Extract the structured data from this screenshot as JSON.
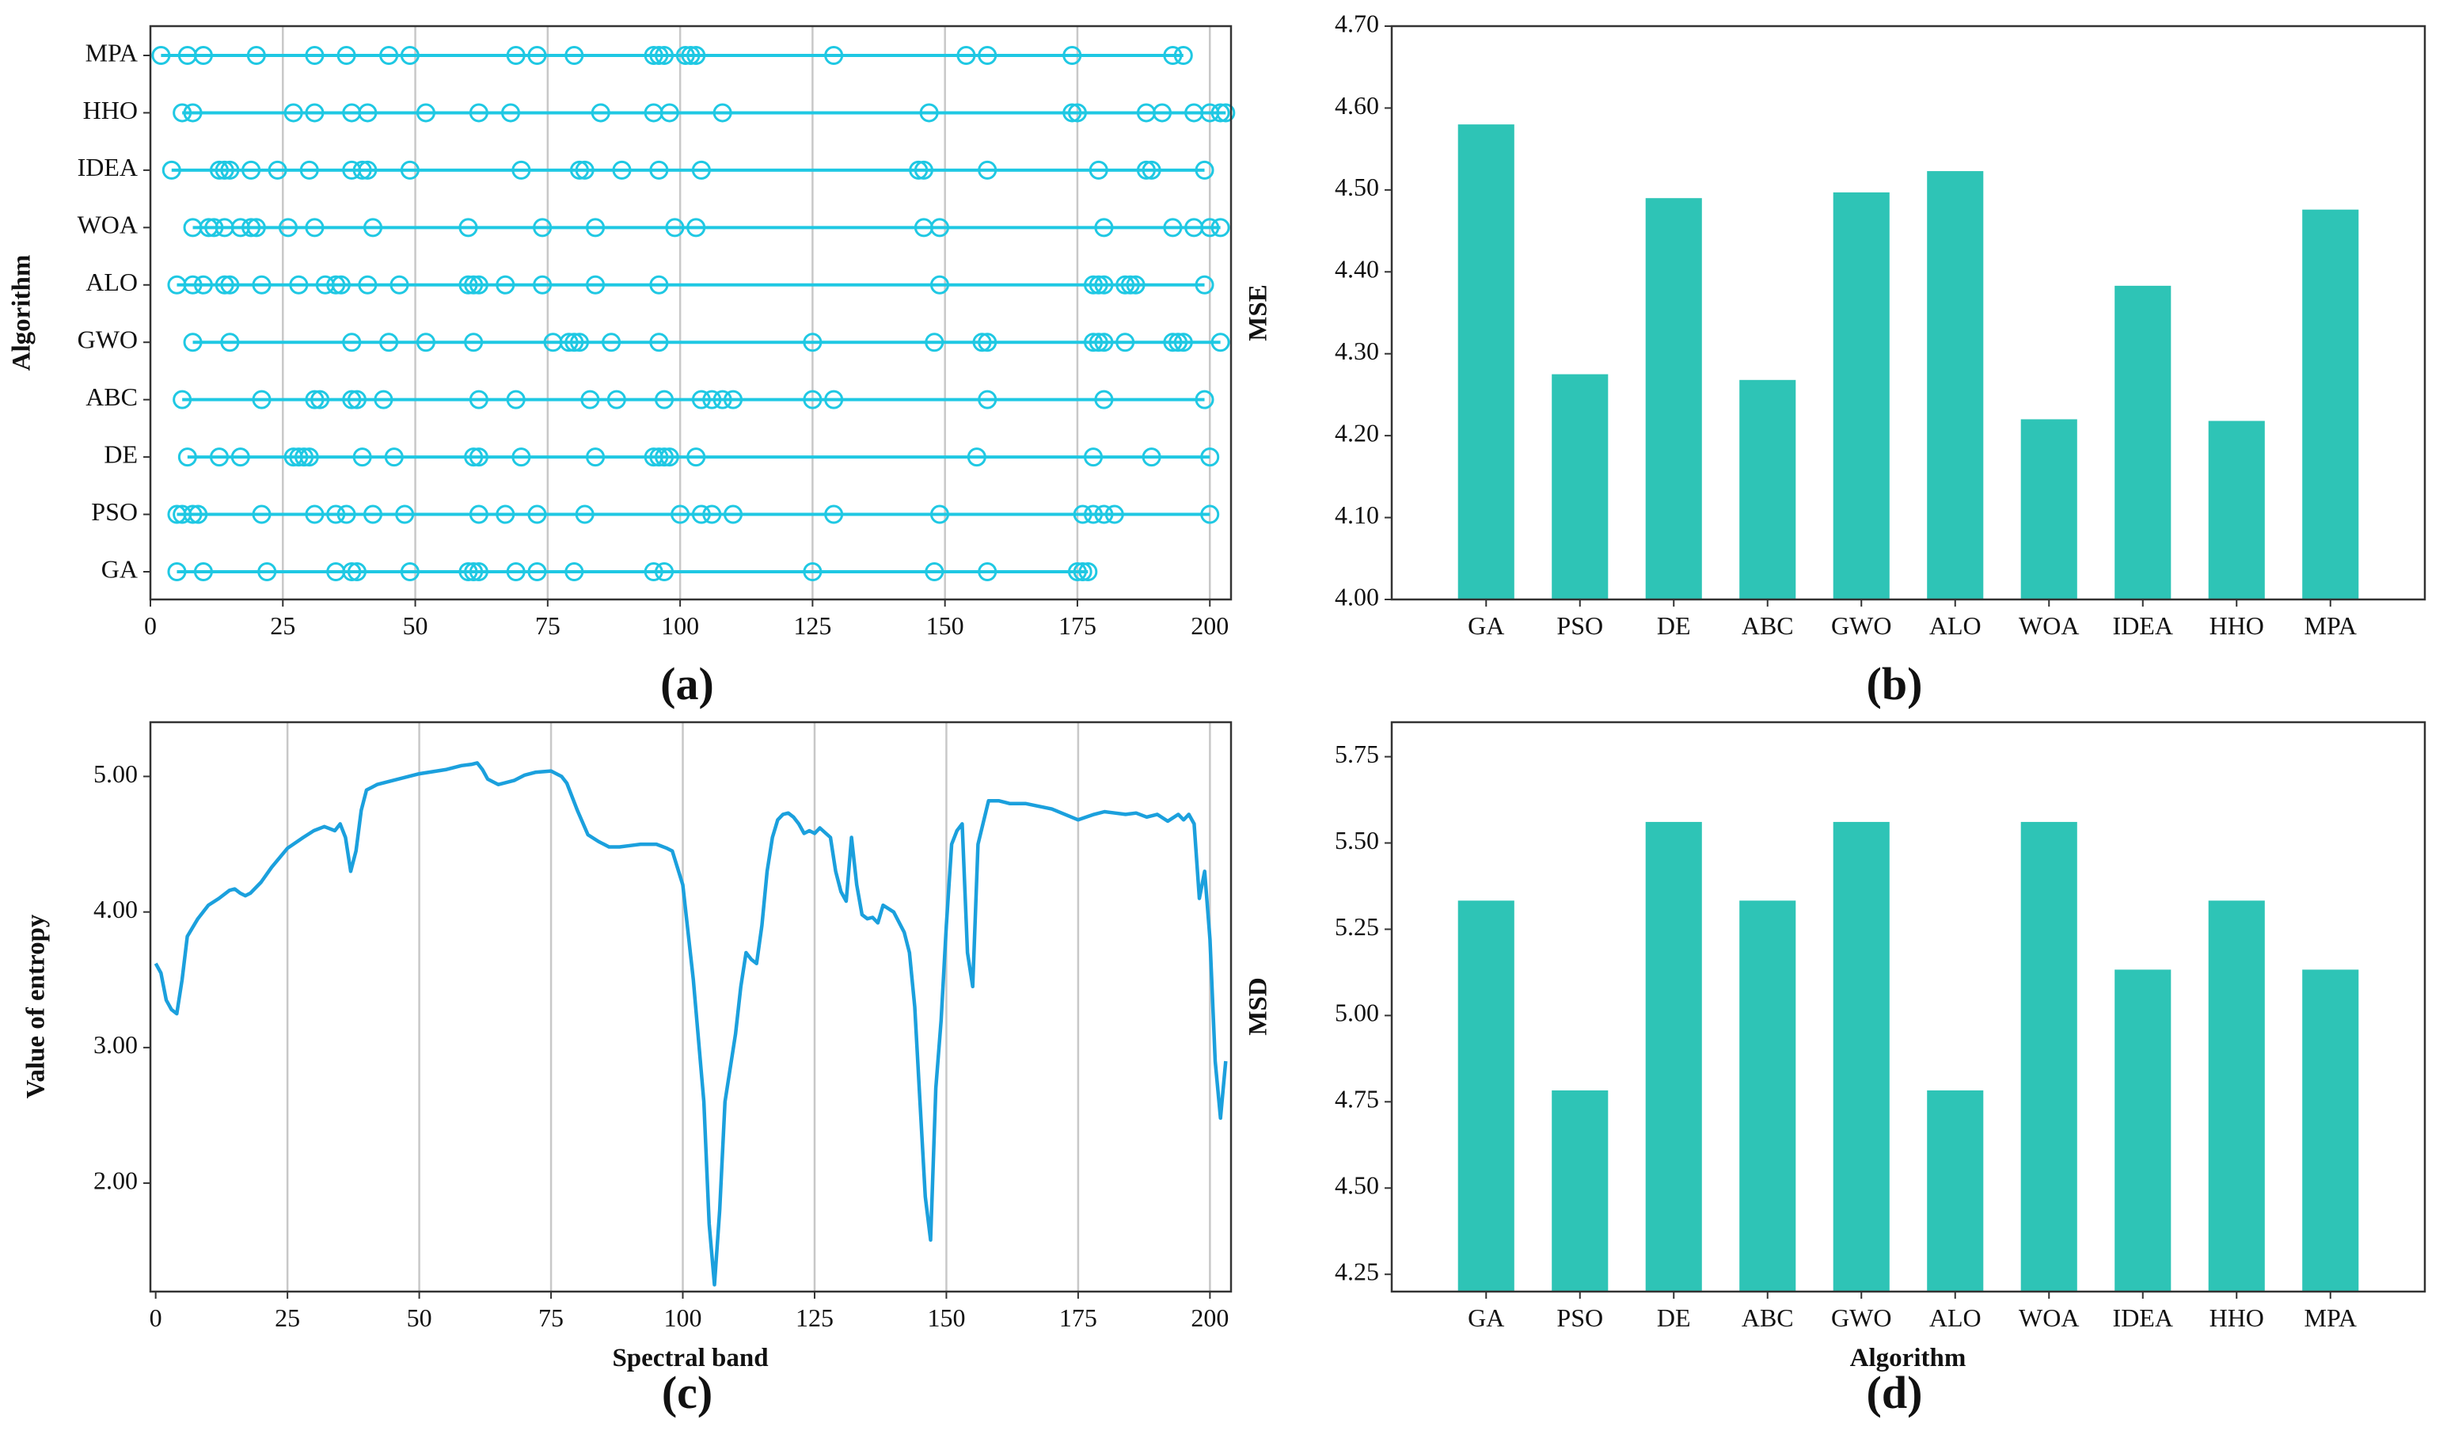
{
  "figure_labels": [
    "(a)",
    "(b)",
    "(c)",
    "(d)"
  ],
  "colors": {
    "marker": "#1fc8e3",
    "bar": "#2ec4b6",
    "entropy_line": "#1ba0dd"
  },
  "chart_data": [
    {
      "id": "a",
      "type": "scatter",
      "title": "",
      "xlabel": "",
      "ylabel": "Algorithm",
      "xlim": [
        0,
        204
      ],
      "xticks": [
        "0",
        "25",
        "50",
        "75",
        "100",
        "125",
        "150",
        "175",
        "200"
      ],
      "xtick_values": [
        0,
        25,
        50,
        75,
        100,
        125,
        150,
        175,
        200
      ],
      "grid": "vertical",
      "categories": [
        "MPA",
        "HHO",
        "IDEA",
        "WOA",
        "ALO",
        "GWO",
        "ABC",
        "DE",
        "PSO",
        "GA"
      ],
      "series": [
        {
          "name": "MPA",
          "values": [
            2,
            7,
            10,
            20,
            31,
            37,
            45,
            49,
            69,
            73,
            80,
            95,
            96,
            97,
            101,
            102,
            103,
            129,
            154,
            158,
            174,
            193,
            195
          ]
        },
        {
          "name": "HHO",
          "values": [
            6,
            8,
            27,
            31,
            38,
            41,
            52,
            62,
            68,
            85,
            95,
            98,
            108,
            147,
            174,
            175,
            188,
            191,
            197,
            200,
            202,
            203
          ]
        },
        {
          "name": "IDEA",
          "values": [
            4,
            13,
            14,
            15,
            19,
            24,
            30,
            38,
            40,
            41,
            49,
            70,
            81,
            82,
            89,
            96,
            104,
            145,
            146,
            158,
            179,
            188,
            189,
            199
          ]
        },
        {
          "name": "WOA",
          "values": [
            8,
            11,
            12,
            14,
            17,
            19,
            20,
            26,
            31,
            42,
            60,
            74,
            84,
            99,
            103,
            146,
            149,
            180,
            193,
            197,
            200,
            202
          ]
        },
        {
          "name": "ALO",
          "values": [
            5,
            8,
            10,
            14,
            15,
            21,
            28,
            33,
            35,
            36,
            41,
            47,
            60,
            61,
            62,
            67,
            74,
            84,
            96,
            149,
            178,
            179,
            180,
            184,
            185,
            186,
            199
          ]
        },
        {
          "name": "GWO",
          "values": [
            8,
            15,
            38,
            45,
            52,
            61,
            76,
            79,
            80,
            81,
            87,
            96,
            125,
            148,
            157,
            158,
            178,
            179,
            180,
            184,
            193,
            194,
            195,
            202
          ]
        },
        {
          "name": "ABC",
          "values": [
            6,
            21,
            31,
            32,
            38,
            39,
            44,
            62,
            69,
            83,
            88,
            97,
            104,
            106,
            108,
            110,
            125,
            129,
            158,
            180,
            199
          ]
        },
        {
          "name": "DE",
          "values": [
            7,
            13,
            17,
            27,
            28,
            29,
            30,
            40,
            46,
            61,
            62,
            70,
            84,
            95,
            96,
            97,
            98,
            103,
            156,
            178,
            189,
            200
          ]
        },
        {
          "name": "PSO",
          "values": [
            5,
            6,
            8,
            9,
            21,
            31,
            35,
            37,
            42,
            48,
            62,
            67,
            73,
            82,
            100,
            104,
            106,
            110,
            129,
            149,
            176,
            178,
            180,
            182,
            200
          ]
        },
        {
          "name": "GA",
          "values": [
            5,
            10,
            22,
            35,
            38,
            39,
            49,
            60,
            61,
            62,
            69,
            73,
            80,
            95,
            97,
            125,
            148,
            158,
            175,
            176,
            177
          ]
        }
      ]
    },
    {
      "id": "b",
      "type": "bar",
      "title": "",
      "xlabel": "",
      "ylabel": "MSE",
      "ylim": [
        4.0,
        4.7
      ],
      "yticks": [
        "4.00",
        "4.10",
        "4.20",
        "4.30",
        "4.40",
        "4.50",
        "4.60",
        "4.70"
      ],
      "ytick_values": [
        4.0,
        4.1,
        4.2,
        4.3,
        4.4,
        4.5,
        4.6,
        4.7
      ],
      "grid": "none",
      "categories": [
        "GA",
        "PSO",
        "DE",
        "ABC",
        "GWO",
        "ALO",
        "WOA",
        "IDEA",
        "HHO",
        "MPA"
      ],
      "values": [
        4.58,
        4.275,
        4.49,
        4.268,
        4.497,
        4.523,
        4.22,
        4.383,
        4.218,
        4.476
      ]
    },
    {
      "id": "c",
      "type": "line",
      "title": "",
      "xlabel": "Spectral band",
      "ylabel": "Value of entropy",
      "xlim": [
        -1,
        204
      ],
      "ylim": [
        1.2,
        5.4
      ],
      "xticks": [
        "0",
        "25",
        "50",
        "75",
        "100",
        "125",
        "150",
        "175",
        "200"
      ],
      "xtick_values": [
        0,
        25,
        50,
        75,
        100,
        125,
        150,
        175,
        200
      ],
      "yticks": [
        "2.00",
        "3.00",
        "4.00",
        "5.00"
      ],
      "ytick_values": [
        2.0,
        3.0,
        4.0,
        5.0
      ],
      "grid": "vertical",
      "x": [
        0,
        1,
        2,
        3,
        4,
        5,
        6,
        8,
        10,
        12,
        14,
        15,
        16,
        17,
        18,
        20,
        22,
        25,
        28,
        30,
        32,
        34,
        35,
        36,
        37,
        38,
        39,
        40,
        41,
        42,
        45,
        50,
        55,
        58,
        60,
        61,
        62,
        63,
        65,
        68,
        70,
        72,
        75,
        77,
        78,
        80,
        82,
        84,
        86,
        88,
        90,
        92,
        95,
        97,
        98,
        100,
        102,
        104,
        105,
        106,
        107,
        108,
        110,
        111,
        112,
        113,
        114,
        115,
        116,
        117,
        118,
        119,
        120,
        121,
        122,
        123,
        124,
        125,
        126,
        128,
        129,
        130,
        131,
        132,
        133,
        134,
        135,
        136,
        137,
        138,
        140,
        142,
        143,
        144,
        145,
        146,
        147,
        148,
        149,
        150,
        151,
        152,
        153,
        154,
        155,
        156,
        158,
        160,
        162,
        165,
        170,
        175,
        178,
        180,
        182,
        184,
        186,
        188,
        190,
        192,
        194,
        195,
        196,
        197,
        198,
        199,
        200,
        201,
        202,
        203
      ],
      "y": [
        3.62,
        3.55,
        3.35,
        3.28,
        3.25,
        3.5,
        3.82,
        3.95,
        4.05,
        4.1,
        4.16,
        4.17,
        4.14,
        4.12,
        4.14,
        4.22,
        4.33,
        4.47,
        4.55,
        4.6,
        4.63,
        4.6,
        4.65,
        4.55,
        4.3,
        4.45,
        4.75,
        4.9,
        4.92,
        4.94,
        4.97,
        5.02,
        5.05,
        5.08,
        5.09,
        5.1,
        5.05,
        4.98,
        4.94,
        4.97,
        5.01,
        5.03,
        5.04,
        5.0,
        4.95,
        4.75,
        4.57,
        4.52,
        4.48,
        4.48,
        4.49,
        4.5,
        4.5,
        4.47,
        4.45,
        4.2,
        3.5,
        2.6,
        1.7,
        1.25,
        1.8,
        2.6,
        3.1,
        3.45,
        3.7,
        3.65,
        3.62,
        3.9,
        4.3,
        4.55,
        4.68,
        4.72,
        4.73,
        4.7,
        4.65,
        4.58,
        4.6,
        4.58,
        4.62,
        4.55,
        4.3,
        4.15,
        4.08,
        4.55,
        4.2,
        3.98,
        3.95,
        3.96,
        3.92,
        4.05,
        4.0,
        3.85,
        3.7,
        3.3,
        2.6,
        1.9,
        1.58,
        2.7,
        3.2,
        3.9,
        4.5,
        4.6,
        4.65,
        3.7,
        3.45,
        4.5,
        4.82,
        4.82,
        4.8,
        4.8,
        4.76,
        4.68,
        4.72,
        4.74,
        4.73,
        4.72,
        4.73,
        4.7,
        4.72,
        4.67,
        4.72,
        4.68,
        4.72,
        4.65,
        4.1,
        4.3,
        3.8,
        2.9,
        2.48,
        2.9
      ]
    },
    {
      "id": "d",
      "type": "bar",
      "title": "",
      "xlabel": "Algorithm",
      "ylabel": "MSD",
      "ylim": [
        4.2,
        5.85
      ],
      "yticks": [
        "4.25",
        "4.50",
        "4.75",
        "5.00",
        "5.25",
        "5.50",
        "5.75"
      ],
      "ytick_values": [
        4.25,
        4.5,
        4.75,
        5.0,
        5.25,
        5.5,
        5.75
      ],
      "grid": "none",
      "categories": [
        "GA",
        "PSO",
        "DE",
        "ABC",
        "GWO",
        "ALO",
        "WOA",
        "IDEA",
        "HHO",
        "MPA"
      ],
      "values": [
        5.333,
        4.783,
        5.561,
        5.333,
        5.561,
        4.783,
        5.561,
        5.133,
        5.333,
        5.133
      ]
    }
  ]
}
